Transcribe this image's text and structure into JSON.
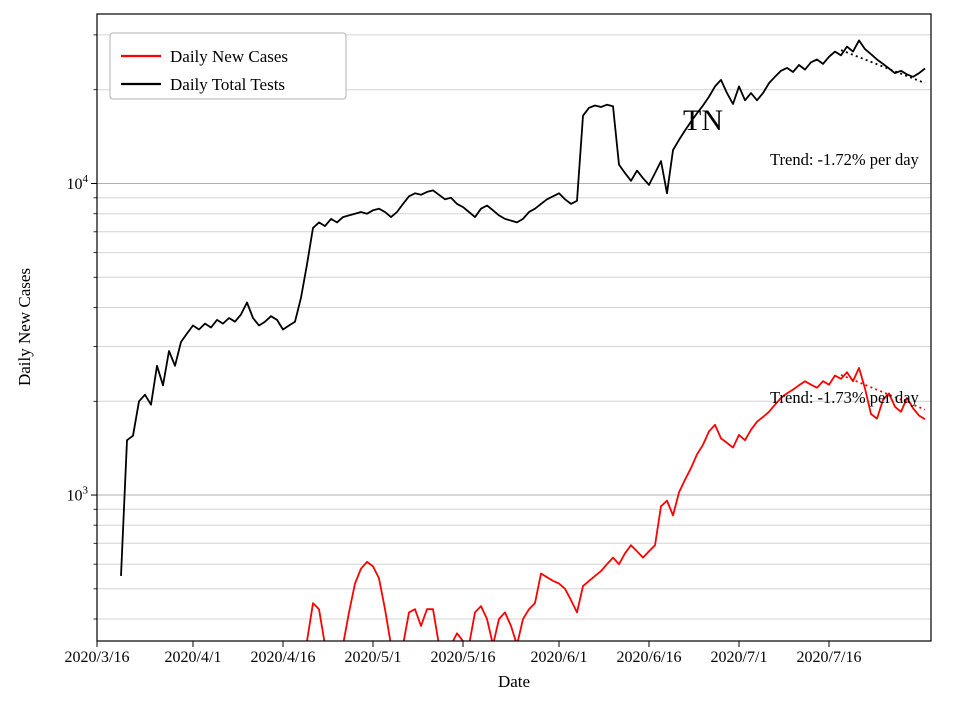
{
  "chart_data": {
    "type": "line",
    "title": "",
    "xlabel": "Date",
    "ylabel": "Daily New Cases",
    "yscale": "log",
    "xlim_days": [
      0,
      139
    ],
    "ylim": [
      340,
      35000
    ],
    "grid": "horizontal-only",
    "grid_color_major": "#b0b0b0",
    "grid_color_minor": "#d4d4d4",
    "x_ticks": [
      {
        "day": 0,
        "label": "2020/3/16"
      },
      {
        "day": 16,
        "label": "2020/4/1"
      },
      {
        "day": 31,
        "label": "2020/4/16"
      },
      {
        "day": 46,
        "label": "2020/5/1"
      },
      {
        "day": 61,
        "label": "2020/5/16"
      },
      {
        "day": 77,
        "label": "2020/6/1"
      },
      {
        "day": 92,
        "label": "2020/6/16"
      },
      {
        "day": 107,
        "label": "2020/7/1"
      },
      {
        "day": 122,
        "label": "2020/7/16"
      }
    ],
    "y_major_ticks": [
      {
        "value": 1000,
        "base": "10",
        "exp": "3"
      },
      {
        "value": 10000,
        "base": "10",
        "exp": "4"
      }
    ],
    "y_minor_gridlines": [
      400,
      500,
      600,
      700,
      800,
      900,
      2000,
      3000,
      4000,
      5000,
      6000,
      7000,
      8000,
      9000,
      20000,
      30000
    ],
    "state_label": {
      "text": "TN",
      "day": 101,
      "value": 16500
    },
    "annotations": [
      {
        "text": "Trend: -1.72% per day",
        "series": "Daily Total Tests",
        "day": 112,
        "value": 12200
      },
      {
        "text": "Trend: -1.73% per day",
        "series": "Daily New Cases",
        "day": 112,
        "value": 2060
      }
    ],
    "legend": {
      "position": "upper-left",
      "items": [
        {
          "label": "Daily New Cases",
          "color": "#ff0000"
        },
        {
          "label": "Daily Total Tests",
          "color": "#000000"
        }
      ]
    },
    "series": [
      {
        "name": "Daily Total Tests",
        "color": "#000000",
        "line": "solid",
        "points": [
          [
            4,
            550
          ],
          [
            5,
            1500
          ],
          [
            6,
            1550
          ],
          [
            7,
            2000
          ],
          [
            8,
            2100
          ],
          [
            9,
            1950
          ],
          [
            10,
            2600
          ],
          [
            11,
            2250
          ],
          [
            12,
            2900
          ],
          [
            13,
            2600
          ],
          [
            14,
            3100
          ],
          [
            15,
            3300
          ],
          [
            16,
            3500
          ],
          [
            17,
            3400
          ],
          [
            18,
            3550
          ],
          [
            19,
            3450
          ],
          [
            20,
            3650
          ],
          [
            21,
            3550
          ],
          [
            22,
            3700
          ],
          [
            23,
            3600
          ],
          [
            24,
            3800
          ],
          [
            25,
            4150
          ],
          [
            26,
            3700
          ],
          [
            27,
            3500
          ],
          [
            28,
            3600
          ],
          [
            29,
            3750
          ],
          [
            30,
            3650
          ],
          [
            31,
            3400
          ],
          [
            32,
            3500
          ],
          [
            33,
            3600
          ],
          [
            34,
            4300
          ],
          [
            35,
            5500
          ],
          [
            36,
            7200
          ],
          [
            37,
            7500
          ],
          [
            38,
            7300
          ],
          [
            39,
            7700
          ],
          [
            40,
            7500
          ],
          [
            41,
            7800
          ],
          [
            42,
            7900
          ],
          [
            43,
            8000
          ],
          [
            44,
            8100
          ],
          [
            45,
            8000
          ],
          [
            46,
            8200
          ],
          [
            47,
            8300
          ],
          [
            48,
            8100
          ],
          [
            49,
            7800
          ],
          [
            50,
            8100
          ],
          [
            51,
            8600
          ],
          [
            52,
            9100
          ],
          [
            53,
            9300
          ],
          [
            54,
            9200
          ],
          [
            55,
            9400
          ],
          [
            56,
            9500
          ],
          [
            57,
            9200
          ],
          [
            58,
            8900
          ],
          [
            59,
            9000
          ],
          [
            60,
            8600
          ],
          [
            61,
            8400
          ],
          [
            62,
            8100
          ],
          [
            63,
            7800
          ],
          [
            64,
            8300
          ],
          [
            65,
            8500
          ],
          [
            66,
            8200
          ],
          [
            67,
            7900
          ],
          [
            68,
            7700
          ],
          [
            69,
            7600
          ],
          [
            70,
            7500
          ],
          [
            71,
            7700
          ],
          [
            72,
            8100
          ],
          [
            73,
            8300
          ],
          [
            74,
            8600
          ],
          [
            75,
            8900
          ],
          [
            76,
            9100
          ],
          [
            77,
            9300
          ],
          [
            78,
            8900
          ],
          [
            79,
            8600
          ],
          [
            80,
            8800
          ],
          [
            81,
            16500
          ],
          [
            82,
            17500
          ],
          [
            83,
            17800
          ],
          [
            84,
            17600
          ],
          [
            85,
            17900
          ],
          [
            86,
            17700
          ],
          [
            87,
            11500
          ],
          [
            88,
            10800
          ],
          [
            89,
            10200
          ],
          [
            90,
            11000
          ],
          [
            91,
            10400
          ],
          [
            92,
            9900
          ],
          [
            93,
            10800
          ],
          [
            94,
            11800
          ],
          [
            95,
            9300
          ],
          [
            96,
            12800
          ],
          [
            97,
            13800
          ],
          [
            98,
            14800
          ],
          [
            99,
            15800
          ],
          [
            100,
            16800
          ],
          [
            101,
            17800
          ],
          [
            102,
            19000
          ],
          [
            103,
            20500
          ],
          [
            104,
            21500
          ],
          [
            105,
            19500
          ],
          [
            106,
            18000
          ],
          [
            107,
            20500
          ],
          [
            108,
            18500
          ],
          [
            109,
            19500
          ],
          [
            110,
            18500
          ],
          [
            111,
            19500
          ],
          [
            112,
            21000
          ],
          [
            113,
            22000
          ],
          [
            114,
            23000
          ],
          [
            115,
            23500
          ],
          [
            116,
            22800
          ],
          [
            117,
            24000
          ],
          [
            118,
            23200
          ],
          [
            119,
            24500
          ],
          [
            120,
            25000
          ],
          [
            121,
            24200
          ],
          [
            122,
            25500
          ],
          [
            123,
            26500
          ],
          [
            124,
            25800
          ],
          [
            125,
            27500
          ],
          [
            126,
            26500
          ],
          [
            127,
            28800
          ],
          [
            128,
            27000
          ],
          [
            129,
            26000
          ],
          [
            130,
            25000
          ],
          [
            131,
            24200
          ],
          [
            132,
            23400
          ],
          [
            133,
            22600
          ],
          [
            134,
            23000
          ],
          [
            135,
            22400
          ],
          [
            136,
            22000
          ],
          [
            137,
            22600
          ],
          [
            138,
            23400
          ]
        ]
      },
      {
        "name": "Daily New Cases",
        "color": "#ff0000",
        "line": "solid",
        "points": [
          [
            35,
            340
          ],
          [
            36,
            450
          ],
          [
            37,
            430
          ],
          [
            38,
            330
          ],
          [
            39,
            300
          ],
          [
            40,
            300
          ],
          [
            41,
            330
          ],
          [
            42,
            420
          ],
          [
            43,
            520
          ],
          [
            44,
            580
          ],
          [
            45,
            610
          ],
          [
            46,
            590
          ],
          [
            47,
            540
          ],
          [
            48,
            430
          ],
          [
            49,
            330
          ],
          [
            50,
            300
          ],
          [
            51,
            330
          ],
          [
            52,
            420
          ],
          [
            53,
            430
          ],
          [
            54,
            380
          ],
          [
            55,
            430
          ],
          [
            56,
            430
          ],
          [
            57,
            330
          ],
          [
            58,
            300
          ],
          [
            59,
            330
          ],
          [
            60,
            360
          ],
          [
            61,
            340
          ],
          [
            62,
            330
          ],
          [
            63,
            420
          ],
          [
            64,
            440
          ],
          [
            65,
            400
          ],
          [
            66,
            330
          ],
          [
            67,
            400
          ],
          [
            68,
            420
          ],
          [
            69,
            380
          ],
          [
            70,
            330
          ],
          [
            71,
            400
          ],
          [
            72,
            430
          ],
          [
            73,
            450
          ],
          [
            74,
            560
          ],
          [
            75,
            545
          ],
          [
            76,
            530
          ],
          [
            77,
            520
          ],
          [
            78,
            500
          ],
          [
            79,
            460
          ],
          [
            80,
            420
          ],
          [
            81,
            510
          ],
          [
            82,
            530
          ],
          [
            83,
            550
          ],
          [
            84,
            570
          ],
          [
            85,
            600
          ],
          [
            86,
            630
          ],
          [
            87,
            600
          ],
          [
            88,
            650
          ],
          [
            89,
            690
          ],
          [
            90,
            660
          ],
          [
            91,
            630
          ],
          [
            92,
            660
          ],
          [
            93,
            690
          ],
          [
            94,
            920
          ],
          [
            95,
            960
          ],
          [
            96,
            860
          ],
          [
            97,
            1020
          ],
          [
            98,
            1120
          ],
          [
            99,
            1220
          ],
          [
            100,
            1350
          ],
          [
            101,
            1450
          ],
          [
            102,
            1600
          ],
          [
            103,
            1680
          ],
          [
            104,
            1520
          ],
          [
            105,
            1470
          ],
          [
            106,
            1420
          ],
          [
            107,
            1560
          ],
          [
            108,
            1500
          ],
          [
            109,
            1620
          ],
          [
            110,
            1720
          ],
          [
            111,
            1780
          ],
          [
            112,
            1850
          ],
          [
            113,
            1950
          ],
          [
            114,
            2050
          ],
          [
            115,
            2120
          ],
          [
            116,
            2180
          ],
          [
            117,
            2250
          ],
          [
            118,
            2320
          ],
          [
            119,
            2260
          ],
          [
            120,
            2210
          ],
          [
            121,
            2320
          ],
          [
            122,
            2260
          ],
          [
            123,
            2420
          ],
          [
            124,
            2360
          ],
          [
            125,
            2480
          ],
          [
            126,
            2320
          ],
          [
            127,
            2560
          ],
          [
            128,
            2200
          ],
          [
            129,
            1820
          ],
          [
            130,
            1760
          ],
          [
            131,
            2020
          ],
          [
            132,
            2120
          ],
          [
            133,
            1920
          ],
          [
            134,
            1850
          ],
          [
            135,
            2050
          ],
          [
            136,
            1900
          ],
          [
            137,
            1800
          ],
          [
            138,
            1750
          ]
        ]
      },
      {
        "name": "Daily Total Tests trend",
        "color": "#000000",
        "line": "dotted",
        "points": [
          [
            124,
            26800
          ],
          [
            138,
            21000
          ]
        ]
      },
      {
        "name": "Daily New Cases trend",
        "color": "#ff0000",
        "line": "dotted",
        "points": [
          [
            124,
            2430
          ],
          [
            138,
            1880
          ]
        ]
      }
    ]
  }
}
